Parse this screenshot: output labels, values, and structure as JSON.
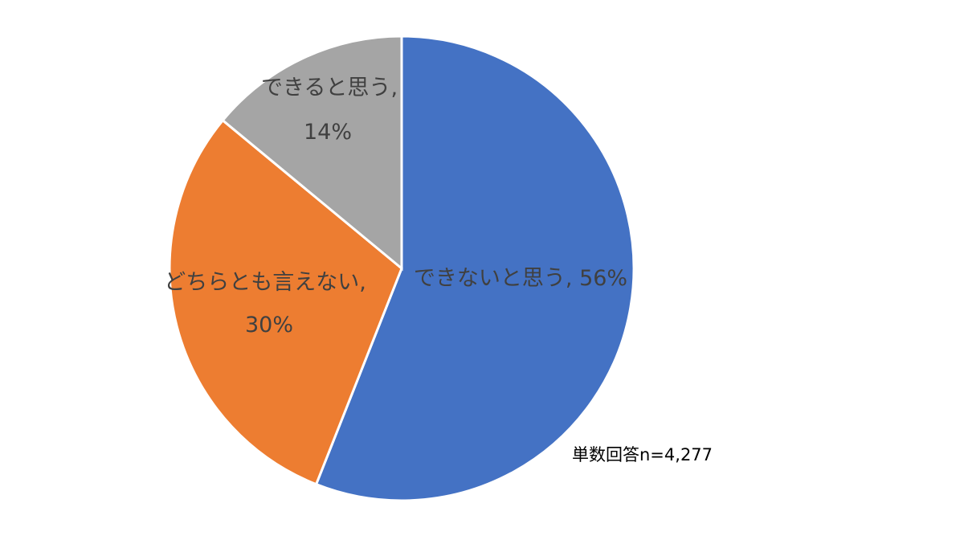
{
  "chart_data": {
    "type": "pie",
    "categories": [
      "できないと思う",
      "どちらとも言えない",
      "できると思う"
    ],
    "values": [
      56,
      30,
      14
    ],
    "value_labels": [
      "56%",
      "30%",
      "14%"
    ],
    "label_separator": ",",
    "colors": [
      "#4472c4",
      "#ed7d31",
      "#a5a5a5"
    ],
    "start_angle": 0,
    "direction": "clockwise",
    "annotation": "単数回答n=4,277"
  }
}
